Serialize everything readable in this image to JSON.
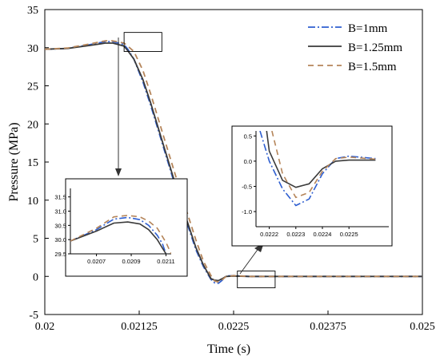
{
  "chart_data": [
    {
      "type": "line",
      "title": "",
      "xlabel": "Time (s)",
      "ylabel": "Pressure (MPa)",
      "xlim": [
        0.02,
        0.025
      ],
      "ylim": [
        -5,
        35
      ],
      "x_ticks": [
        0.02,
        0.02125,
        0.0225,
        0.02375,
        0.025
      ],
      "x_tick_labels": [
        "0.02",
        "0.02125",
        "0.0225",
        "0.02375",
        "0.025"
      ],
      "y_ticks": [
        -5,
        0,
        5,
        10,
        15,
        20,
        25,
        30,
        35
      ],
      "y_tick_labels": [
        "-5",
        "0",
        "5",
        "10",
        "15",
        "20",
        "25",
        "30",
        "35"
      ],
      "grid": false,
      "legend_position": "top-right",
      "series": [
        {
          "name": "B=1mm",
          "color": "#2f5fd0",
          "dash": "dash-dot",
          "x": [
            0.02,
            0.0203,
            0.0206,
            0.0208,
            0.0209,
            0.02105,
            0.0211,
            0.02118,
            0.0213,
            0.0214,
            0.0216,
            0.0218,
            0.022,
            0.0221,
            0.0222,
            0.02225,
            0.0223,
            0.02235,
            0.0224,
            0.0225,
            0.0227,
            0.025
          ],
          "y": [
            29.8,
            29.9,
            30.4,
            30.8,
            30.8,
            30.4,
            29.8,
            28.5,
            25.5,
            22.5,
            16.0,
            9.5,
            3.5,
            1.3,
            -0.4,
            -0.85,
            -0.9,
            -0.5,
            0.05,
            0.1,
            0.0,
            0.0
          ]
        },
        {
          "name": "B=1.25mm",
          "color": "#3a3a3a",
          "dash": "solid",
          "x": [
            0.02,
            0.0203,
            0.0206,
            0.0208,
            0.0209,
            0.02105,
            0.0211,
            0.02118,
            0.0213,
            0.0214,
            0.0216,
            0.0218,
            0.022,
            0.0221,
            0.0222,
            0.02225,
            0.0223,
            0.02235,
            0.0224,
            0.0225,
            0.0227,
            0.025
          ],
          "y": [
            29.8,
            29.9,
            30.3,
            30.6,
            30.6,
            30.2,
            29.6,
            28.5,
            25.8,
            22.8,
            16.3,
            9.8,
            3.8,
            1.5,
            -0.3,
            -0.5,
            -0.55,
            -0.3,
            0.0,
            0.05,
            0.0,
            0.0
          ]
        },
        {
          "name": "B=1.5mm",
          "color": "#b5855a",
          "dash": "dashed",
          "x": [
            0.02,
            0.0203,
            0.0206,
            0.0208,
            0.0209,
            0.02105,
            0.0211,
            0.02118,
            0.0213,
            0.0214,
            0.0216,
            0.0218,
            0.022,
            0.0221,
            0.0222,
            0.02225,
            0.0223,
            0.02235,
            0.0224,
            0.0225,
            0.0227,
            0.025
          ],
          "y": [
            29.8,
            29.95,
            30.5,
            30.9,
            30.9,
            30.6,
            30.2,
            29.5,
            27.0,
            24.0,
            17.5,
            11.0,
            4.8,
            2.0,
            0.1,
            -0.6,
            -0.75,
            -0.45,
            0.0,
            0.1,
            0.0,
            0.0
          ]
        }
      ],
      "highlight_boxes": [
        {
          "x": [
            0.02105,
            0.02155
          ],
          "y": [
            29.5,
            32.0
          ]
        },
        {
          "x": [
            0.02255,
            0.02305
          ],
          "y": [
            -1.5,
            0.7
          ]
        }
      ]
    },
    {
      "type": "line",
      "role": "inset-left",
      "xlim": [
        0.02055,
        0.02113
      ],
      "ylim": [
        29.5,
        31.8
      ],
      "x_ticks": [
        0.0207,
        0.0209,
        0.0211
      ],
      "x_tick_labels": [
        "0.0207",
        "0.0209",
        "0.0211"
      ],
      "y_ticks": [
        29.5,
        30.0,
        30.5,
        31.0,
        31.5
      ],
      "y_tick_labels": [
        "29.5",
        "30.0",
        "30.5",
        "31.0",
        "31.5"
      ],
      "series": [
        {
          "name": "B=1mm",
          "x": [
            0.02055,
            0.0207,
            0.0208,
            0.02088,
            0.02095,
            0.021,
            0.02105,
            0.02108,
            0.0211
          ],
          "y": [
            29.95,
            30.35,
            30.72,
            30.78,
            30.7,
            30.5,
            30.15,
            29.85,
            29.5
          ]
        },
        {
          "name": "B=1.25mm",
          "x": [
            0.02055,
            0.0207,
            0.0208,
            0.02088,
            0.02095,
            0.021,
            0.02105,
            0.02108,
            0.0211
          ],
          "y": [
            29.95,
            30.3,
            30.58,
            30.62,
            30.55,
            30.35,
            30.0,
            29.7,
            29.5
          ]
        },
        {
          "name": "B=1.5mm",
          "x": [
            0.02055,
            0.0207,
            0.0208,
            0.02088,
            0.02095,
            0.021,
            0.02105,
            0.0211,
            0.02113
          ],
          "y": [
            29.95,
            30.4,
            30.8,
            30.85,
            30.8,
            30.65,
            30.4,
            29.9,
            29.5
          ]
        }
      ]
    },
    {
      "type": "line",
      "role": "inset-right",
      "xlim": [
        0.02215,
        0.02265
      ],
      "ylim": [
        -1.3,
        0.6
      ],
      "x_ticks": [
        0.0222,
        0.0223,
        0.0224,
        0.0225
      ],
      "x_tick_labels": [
        "0.0222",
        "0.0223",
        "0.0224",
        "0.0225"
      ],
      "y_ticks": [
        -1.0,
        -0.5,
        0.0,
        0.5
      ],
      "y_tick_labels": [
        "-1.0",
        "-0.5",
        "0.0",
        "0.5"
      ],
      "series": [
        {
          "name": "B=1mm",
          "x": [
            0.022165,
            0.0222,
            0.02225,
            0.0223,
            0.02235,
            0.0224,
            0.02245,
            0.0225,
            0.0226
          ],
          "y": [
            0.6,
            0.0,
            -0.55,
            -0.88,
            -0.75,
            -0.25,
            0.05,
            0.1,
            0.05
          ]
        },
        {
          "name": "B=1.25mm",
          "x": [
            0.02219,
            0.0222,
            0.02225,
            0.0223,
            0.02235,
            0.0224,
            0.02245,
            0.0225,
            0.0226
          ],
          "y": [
            0.6,
            0.2,
            -0.38,
            -0.52,
            -0.45,
            -0.15,
            0.0,
            0.02,
            0.02
          ]
        },
        {
          "name": "B=1.5mm",
          "x": [
            0.02221,
            0.02225,
            0.0223,
            0.02235,
            0.0224,
            0.02245,
            0.0225,
            0.0226
          ],
          "y": [
            0.6,
            -0.25,
            -0.72,
            -0.62,
            -0.2,
            0.05,
            0.08,
            0.04
          ]
        }
      ]
    }
  ]
}
